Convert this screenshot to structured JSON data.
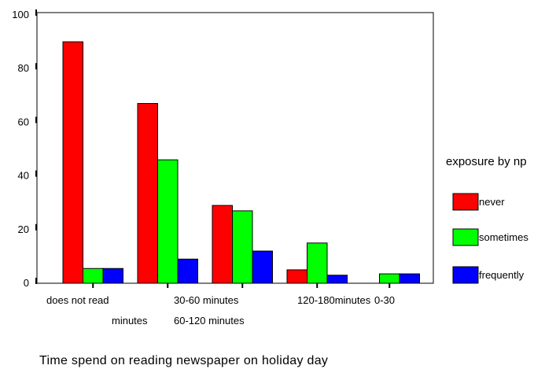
{
  "chart_data": {
    "type": "bar",
    "title": "",
    "xlabel": "Time spend on reading newspaper on holiday day",
    "ylabel": "",
    "ylim": [
      0,
      100
    ],
    "yticks": [
      "0",
      "20",
      "40",
      "60",
      "80",
      "100"
    ],
    "grid": false,
    "legend_position": "right",
    "legend_title": "exposure by np",
    "categories": [
      "does not read",
      "30-60 minutes",
      "60-120 minutes",
      "120-180minutes",
      "0-30 minutes"
    ],
    "category_labels": {
      "does_not_read": "does not read",
      "thirty_sixty": "30-60 minutes",
      "sixty_onetwenty": "60-120 minutes",
      "onetwenty_oneeighty": "120-180minutes",
      "zero_thirty": "0-30",
      "minutes_wrap": "minutes"
    },
    "series": [
      {
        "name": "never",
        "color": "#ff0000",
        "values": [
          90,
          67,
          29,
          5,
          0
        ]
      },
      {
        "name": "sometimes",
        "color": "#00ff00",
        "values": [
          5.5,
          46,
          27,
          15,
          3.5
        ]
      },
      {
        "name": "frequently",
        "color": "#0000ff",
        "values": [
          5.5,
          9,
          12,
          3,
          3.5
        ]
      }
    ]
  }
}
